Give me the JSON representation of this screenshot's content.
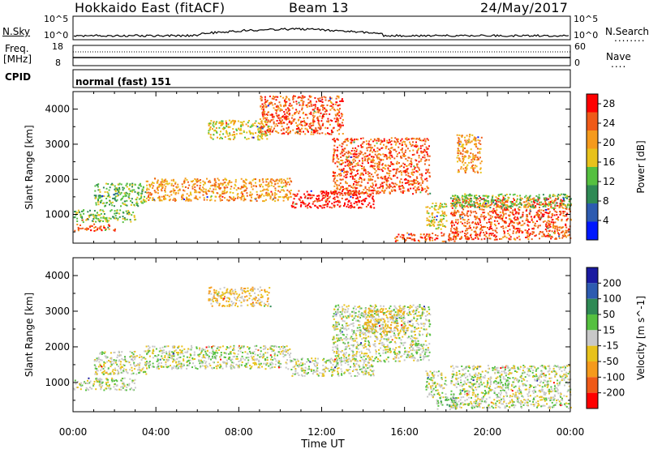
{
  "header": {
    "station": "Hokkaido East (fitACF)",
    "beam": "Beam 13",
    "date": "24/May/2017"
  },
  "aux_panels": {
    "nsky_label": "N.Sky",
    "nsearch_label": "N.Search",
    "nsearch_line": "........",
    "freq_label_top": "Freq.",
    "freq_label_unit": "[MHz]",
    "nave_label": "Nave",
    "nave_line": "....",
    "cpid_label": "CPID",
    "cpid_value": "normal (fast) 151",
    "noise_ticks_left": [
      "10^5",
      "10^0"
    ],
    "noise_ticks_right": [
      "10^5",
      "10^0"
    ],
    "freq_ticks": [
      "18",
      "8"
    ],
    "nave_ticks": [
      "60",
      "0"
    ]
  },
  "chart_data": [
    {
      "type": "heatmap",
      "name": "power",
      "xlabel": "",
      "ylabel": "Slant Range [km]",
      "x_ticks": [
        "00:00",
        "04:00",
        "08:00",
        "12:00",
        "16:00",
        "20:00",
        "00:00"
      ],
      "xlim_hours": [
        0,
        24
      ],
      "y_ticks": [
        1000,
        2000,
        3000,
        4000
      ],
      "ylim": [
        180,
        4500
      ],
      "colorbar_label": "Power [dB]",
      "colorbar_ticks": [
        4,
        8,
        12,
        16,
        20,
        24,
        28
      ],
      "colorbar_range": [
        0,
        30
      ],
      "colors": [
        "#0018ff",
        "#2d5bb0",
        "#2f8a55",
        "#55c040",
        "#e8c21c",
        "#f59a1c",
        "#ef5a18",
        "#ff0000"
      ],
      "features": [
        {
          "t0": 0.0,
          "t1": 3.0,
          "r0": 800,
          "r1": 1150,
          "level": 3
        },
        {
          "t0": 0.0,
          "t1": 2.0,
          "r0": 550,
          "r1": 750,
          "level": 6
        },
        {
          "t0": 1.0,
          "t1": 3.5,
          "r0": 1250,
          "r1": 1900,
          "level": 3
        },
        {
          "t0": 3.5,
          "t1": 10.5,
          "r0": 1400,
          "r1": 2050,
          "level": 5
        },
        {
          "t0": 6.5,
          "t1": 9.5,
          "r0": 3150,
          "r1": 3700,
          "level": 4
        },
        {
          "t0": 9.0,
          "t1": 13.0,
          "r0": 3300,
          "r1": 4400,
          "level": 6
        },
        {
          "t0": 10.5,
          "t1": 14.5,
          "r0": 1200,
          "r1": 1700,
          "level": 7
        },
        {
          "t0": 12.5,
          "t1": 17.2,
          "r0": 1600,
          "r1": 3200,
          "level": 6
        },
        {
          "t0": 17.0,
          "t1": 18.0,
          "r0": 600,
          "r1": 1350,
          "level": 4
        },
        {
          "t0": 15.5,
          "t1": 18.5,
          "r0": 250,
          "r1": 500,
          "level": 6
        },
        {
          "t0": 18.2,
          "t1": 24.0,
          "r0": 300,
          "r1": 1500,
          "level": 6
        },
        {
          "t0": 18.2,
          "t1": 24.0,
          "r0": 1200,
          "r1": 1600,
          "level": 3
        },
        {
          "t0": 18.5,
          "t1": 19.7,
          "r0": 2200,
          "r1": 3300,
          "level": 5
        }
      ]
    },
    {
      "type": "heatmap",
      "name": "velocity",
      "xlabel": "Time UT",
      "ylabel": "Slant Range [km]",
      "x_ticks": [
        "00:00",
        "04:00",
        "08:00",
        "12:00",
        "16:00",
        "20:00",
        "00:00"
      ],
      "xlim_hours": [
        0,
        24
      ],
      "y_ticks": [
        1000,
        2000,
        3000,
        4000
      ],
      "ylim": [
        180,
        4500
      ],
      "colorbar_label": "Velocity [m s^-1]",
      "colorbar_ticks": [
        200,
        100,
        50,
        15,
        -15,
        -50,
        -100,
        -200
      ],
      "colorbar_range": [
        -250,
        250
      ],
      "colors": [
        "#1a1aa0",
        "#2d5bb0",
        "#2f8a55",
        "#55c040",
        "#c8c8c8",
        "#e8c21c",
        "#f59a1c",
        "#ef5a18",
        "#ff0000"
      ],
      "features": [
        {
          "t0": 0.0,
          "t1": 3.0,
          "r0": 800,
          "r1": 1150,
          "level": 4
        },
        {
          "t0": 1.0,
          "t1": 3.5,
          "r0": 1250,
          "r1": 1900,
          "level": 4
        },
        {
          "t0": 3.5,
          "t1": 10.5,
          "r0": 1400,
          "r1": 2050,
          "level": 4
        },
        {
          "t0": 6.5,
          "t1": 9.5,
          "r0": 3150,
          "r1": 3700,
          "level": 5
        },
        {
          "t0": 10.5,
          "t1": 14.5,
          "r0": 1200,
          "r1": 1700,
          "level": 4
        },
        {
          "t0": 12.5,
          "t1": 17.2,
          "r0": 1600,
          "r1": 3200,
          "level": 4
        },
        {
          "t0": 14.0,
          "t1": 16.0,
          "r0": 2400,
          "r1": 3100,
          "level": 5
        },
        {
          "t0": 17.0,
          "t1": 18.0,
          "r0": 600,
          "r1": 1350,
          "level": 4
        },
        {
          "t0": 17.5,
          "t1": 18.5,
          "r0": 250,
          "r1": 600,
          "level": 3
        },
        {
          "t0": 18.2,
          "t1": 24.0,
          "r0": 300,
          "r1": 1500,
          "level": 4
        }
      ]
    }
  ]
}
